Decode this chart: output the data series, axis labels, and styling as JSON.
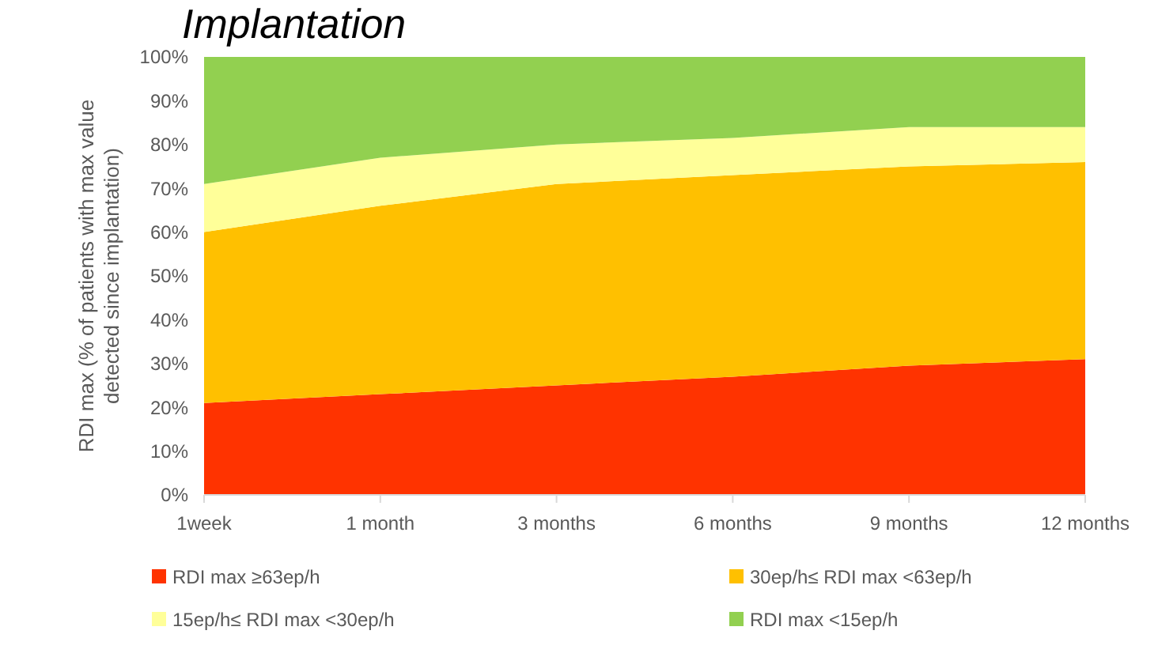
{
  "chart_data": {
    "type": "area",
    "stacked": true,
    "title": "Implantation",
    "ylabel": "RDI max (% of patients with max value\ndetected since implantation)",
    "categories": [
      "1week",
      "1 month",
      "3 months",
      "6 months",
      "9 months",
      "12 months"
    ],
    "ylim": [
      0,
      100
    ],
    "yticks": [
      {
        "value": 0,
        "label": "0%"
      },
      {
        "value": 10,
        "label": "10%"
      },
      {
        "value": 20,
        "label": "20%"
      },
      {
        "value": 30,
        "label": "30%"
      },
      {
        "value": 40,
        "label": "40%"
      },
      {
        "value": 50,
        "label": "50%"
      },
      {
        "value": 60,
        "label": "60%"
      },
      {
        "value": 70,
        "label": "70%"
      },
      {
        "value": 80,
        "label": "80%"
      },
      {
        "value": 90,
        "label": "90%"
      },
      {
        "value": 100,
        "label": "100%"
      }
    ],
    "grid": false,
    "legend": "bottom",
    "series": [
      {
        "name": "RDI max ≥63ep/h",
        "color": "#ff3300",
        "values": [
          21,
          23,
          25,
          27,
          29.5,
          31
        ]
      },
      {
        "name": "30ep/h≤ RDI max <63ep/h",
        "color": "#ffc000",
        "values": [
          39,
          43,
          46,
          46,
          45.5,
          45
        ]
      },
      {
        "name": "15ep/h≤ RDI max <30ep/h",
        "color": "#ffff99",
        "values": [
          11,
          11,
          9,
          8.5,
          9,
          8
        ]
      },
      {
        "name": "RDI max <15ep/h",
        "color": "#92d050",
        "values": [
          29,
          23,
          20,
          18.5,
          16,
          16
        ]
      }
    ]
  }
}
